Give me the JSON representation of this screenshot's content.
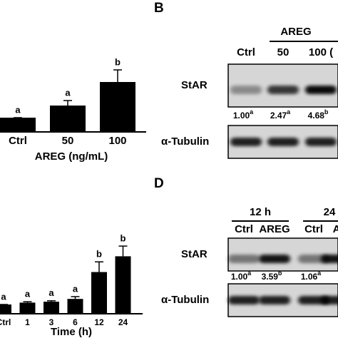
{
  "chart_data": [
    {
      "type": "bar",
      "categories": [
        "Ctrl",
        "50",
        "100"
      ],
      "values": [
        1,
        1.85,
        3.5
      ],
      "errors": [
        0,
        0.35,
        0.85
      ],
      "annotations": [
        "a",
        "a",
        "b"
      ],
      "x_label": "AREG (ng/mL)",
      "color": "#000000"
    },
    {
      "type": "bar",
      "categories": [
        "Ctrl",
        "1",
        "3",
        "6",
        "12",
        "24"
      ],
      "values": [
        1,
        1.2,
        1.3,
        1.6,
        4.5,
        6.2
      ],
      "errors": [
        0,
        0.1,
        0.1,
        0.25,
        1.1,
        1.1
      ],
      "annotations": [
        "a",
        "a",
        "a",
        "a",
        "b",
        "b"
      ],
      "x_label": "Time (h)",
      "color": "#000000"
    }
  ],
  "panels": [
    {
      "label": "B",
      "groups": [
        "AREG"
      ],
      "lanes": [
        "Ctrl",
        "50",
        "100 ("
      ],
      "rows": [
        "StAR",
        "α-Tubulin"
      ],
      "quantification": [
        {
          "value": "1.00",
          "sig": "a"
        },
        {
          "value": "2.47",
          "sig": "a"
        },
        {
          "value": "4.68",
          "sig": "b"
        }
      ]
    },
    {
      "label": "D",
      "groups": [
        "12 h",
        "24"
      ],
      "lanes": [
        "Ctrl",
        "AREG",
        "Ctrl",
        "A"
      ],
      "rows": [
        "StAR",
        "α-Tubulin"
      ],
      "quantification": [
        {
          "value": "1.00",
          "sig": "a"
        },
        {
          "value": "3.59",
          "sig": "b"
        },
        {
          "value": "1.06",
          "sig": "a"
        }
      ]
    }
  ]
}
